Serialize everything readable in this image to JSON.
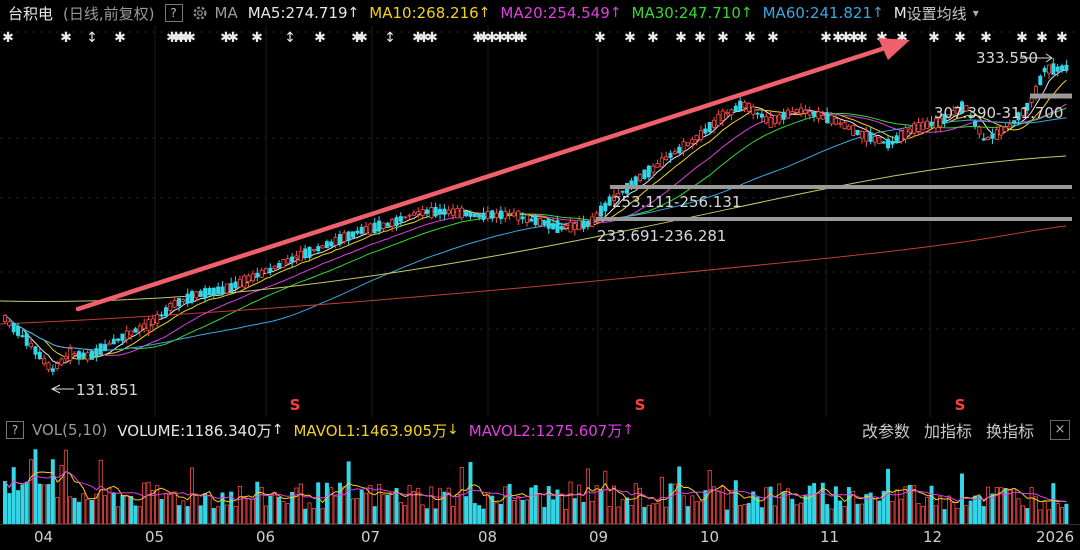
{
  "header": {
    "stock_name": "台积电",
    "period": "(日线,前复权)",
    "help_label": "?",
    "ma_label": "MA",
    "ma5": "MA5:274.719",
    "ma10": "MA10:268.216",
    "ma20": "MA20:254.549",
    "ma30": "MA30:247.710",
    "ma60": "MA60:241.821",
    "truncated": "M",
    "settings_label": "设置均线",
    "arrow_up": "↑",
    "dropdown_glyph": "▾"
  },
  "volume_panel": {
    "help_label": "?",
    "indicator": "VOL(5,10)",
    "volume": "VOLUME:1186.340万",
    "mavol1": "MAVOL1:1463.905万",
    "mavol2": "MAVOL2:1275.607万",
    "arrow_up": "↑",
    "arrow_down": "↓",
    "buttons": [
      "改参数",
      "加指标",
      "换指标"
    ],
    "close_label": "×"
  },
  "price_labels": {
    "high": "333.550",
    "low": "131.851",
    "zone1": "307.390-311.700",
    "zone2": "253.111-256.131",
    "zone3": "233.691-236.281"
  },
  "event_marker": "S",
  "x_axis": [
    "04",
    "05",
    "06",
    "07",
    "08",
    "09",
    "10",
    "11",
    "12",
    "2026"
  ],
  "colors": {
    "up": "#ff4a4a",
    "down": "#33d6e6",
    "ma5": "#e8e8e8",
    "ma10": "#f3d21a",
    "ma20": "#e040e0",
    "ma30": "#37d637",
    "ma60": "#3aa8e0",
    "ma120": "#c8c86a",
    "ma250": "#c0402e",
    "trend_arrow": "#f0606c"
  }
}
